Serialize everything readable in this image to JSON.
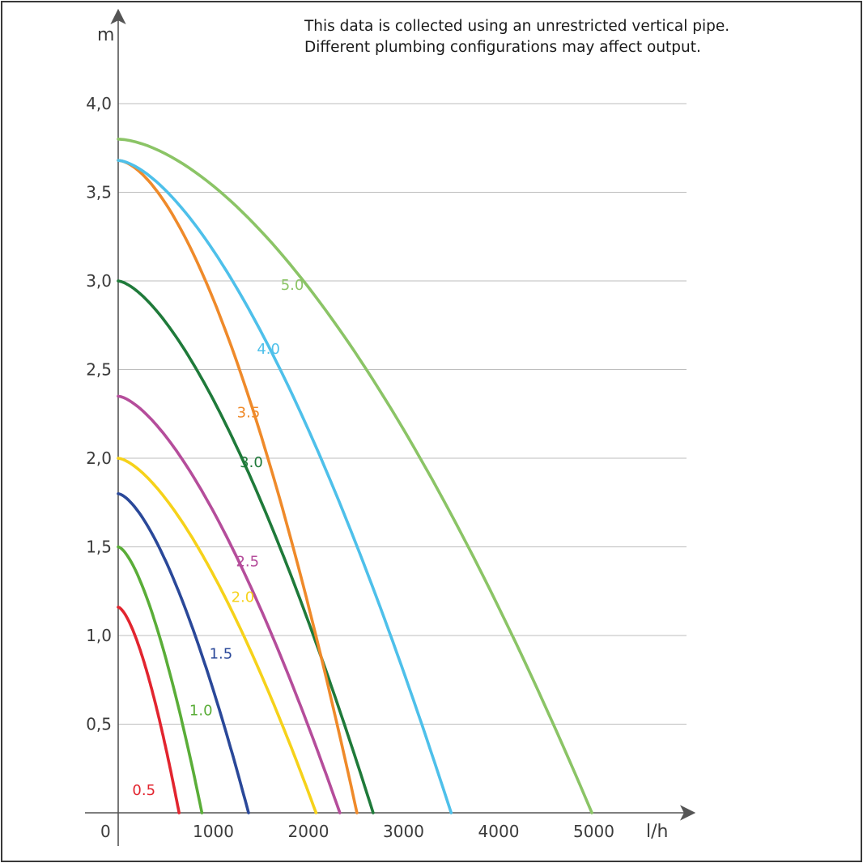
{
  "chart_data": {
    "type": "line",
    "xlabel": "l/h",
    "ylabel": "m",
    "xlim": [
      0,
      6000
    ],
    "ylim": [
      0,
      4.4
    ],
    "x_origin_label": "0",
    "x_ticks": [
      {
        "value": 1000,
        "label": "1000"
      },
      {
        "value": 2000,
        "label": "2000"
      },
      {
        "value": 3000,
        "label": "3000"
      },
      {
        "value": 4000,
        "label": "4000"
      },
      {
        "value": 5000,
        "label": "5000"
      }
    ],
    "y_ticks": [
      {
        "value": 0.5,
        "label": "0,5"
      },
      {
        "value": 1.0,
        "label": "1,0"
      },
      {
        "value": 1.5,
        "label": "1,5"
      },
      {
        "value": 2.0,
        "label": "2,0"
      },
      {
        "value": 2.5,
        "label": "2,5"
      },
      {
        "value": 3.0,
        "label": "3,0"
      },
      {
        "value": 3.5,
        "label": "3,5"
      },
      {
        "value": 4.0,
        "label": "4,0"
      }
    ],
    "grid": "horizontal",
    "annotations": [
      "This data is collected using an unrestricted vertical pipe.",
      "Different plumbing configurations may affect output."
    ],
    "series": [
      {
        "name": "0.5",
        "color": "#e2252f",
        "h0": 1.16,
        "qmax": 640,
        "k": 0.9,
        "label_at": [
          270,
          0.1
        ],
        "points": [
          [
            0,
            1.16
          ],
          [
            160,
            0.97
          ],
          [
            320,
            0.7
          ],
          [
            480,
            0.38
          ],
          [
            640,
            0
          ]
        ]
      },
      {
        "name": "1.0",
        "color": "#5aad38",
        "h0": 1.5,
        "qmax": 880,
        "k": 0.9,
        "label_at": [
          870,
          0.55
        ],
        "points": [
          [
            0,
            1.5
          ],
          [
            220,
            1.26
          ],
          [
            440,
            0.91
          ],
          [
            660,
            0.49
          ],
          [
            880,
            0
          ]
        ]
      },
      {
        "name": "1.5",
        "color": "#2a4899",
        "h0": 1.8,
        "qmax": 1370,
        "k": 0.9,
        "label_at": [
          1080,
          0.87
        ],
        "points": [
          [
            0,
            1.8
          ],
          [
            340,
            1.51
          ],
          [
            685,
            1.1
          ],
          [
            1030,
            0.59
          ],
          [
            1370,
            0
          ]
        ]
      },
      {
        "name": "2.0",
        "color": "#f6d21a",
        "h0": 2.0,
        "qmax": 2080,
        "k": 0.95,
        "label_at": [
          1310,
          1.19
        ],
        "points": [
          [
            0,
            2.0
          ],
          [
            520,
            1.67
          ],
          [
            1040,
            1.2
          ],
          [
            1560,
            0.63
          ],
          [
            2080,
            0
          ]
        ]
      },
      {
        "name": "2.5",
        "color": "#b54d9b",
        "h0": 2.35,
        "qmax": 2330,
        "k": 0.95,
        "label_at": [
          1360,
          1.39
        ],
        "points": [
          [
            0,
            2.35
          ],
          [
            580,
            1.96
          ],
          [
            1165,
            1.41
          ],
          [
            1750,
            0.74
          ],
          [
            2330,
            0
          ]
        ]
      },
      {
        "name": "3.0",
        "color": "#1f7a3a",
        "h0": 3.0,
        "qmax": 2680,
        "k": 0.95,
        "label_at": [
          1400,
          1.95
        ],
        "points": [
          [
            0,
            3.0
          ],
          [
            670,
            2.5
          ],
          [
            1340,
            1.8
          ],
          [
            2010,
            0.94
          ],
          [
            2680,
            0
          ]
        ]
      },
      {
        "name": "3.5",
        "color": "#ef8a2a",
        "h0": 3.68,
        "qmax": 2510,
        "k": 0.55,
        "label_at": [
          1370,
          2.23
        ],
        "points": [
          [
            0,
            3.68
          ],
          [
            630,
            2.99
          ],
          [
            1255,
            2.18
          ],
          [
            1880,
            1.25
          ],
          [
            2510,
            0
          ]
        ]
      },
      {
        "name": "4.0",
        "color": "#4ec0ea",
        "h0": 3.68,
        "qmax": 3500,
        "k": 0.8,
        "label_at": [
          1580,
          2.59
        ],
        "points": [
          [
            0,
            3.68
          ],
          [
            875,
            3.04
          ],
          [
            1750,
            2.21
          ],
          [
            2625,
            1.21
          ],
          [
            3500,
            0
          ]
        ]
      },
      {
        "name": "5.0",
        "color": "#8bc466",
        "h0": 3.8,
        "qmax": 4980,
        "k": 0.6,
        "label_at": [
          1830,
          2.95
        ],
        "points": [
          [
            0,
            3.8
          ],
          [
            1245,
            3.21
          ],
          [
            2490,
            2.46
          ],
          [
            3735,
            1.41
          ],
          [
            4980,
            0
          ]
        ]
      }
    ]
  }
}
